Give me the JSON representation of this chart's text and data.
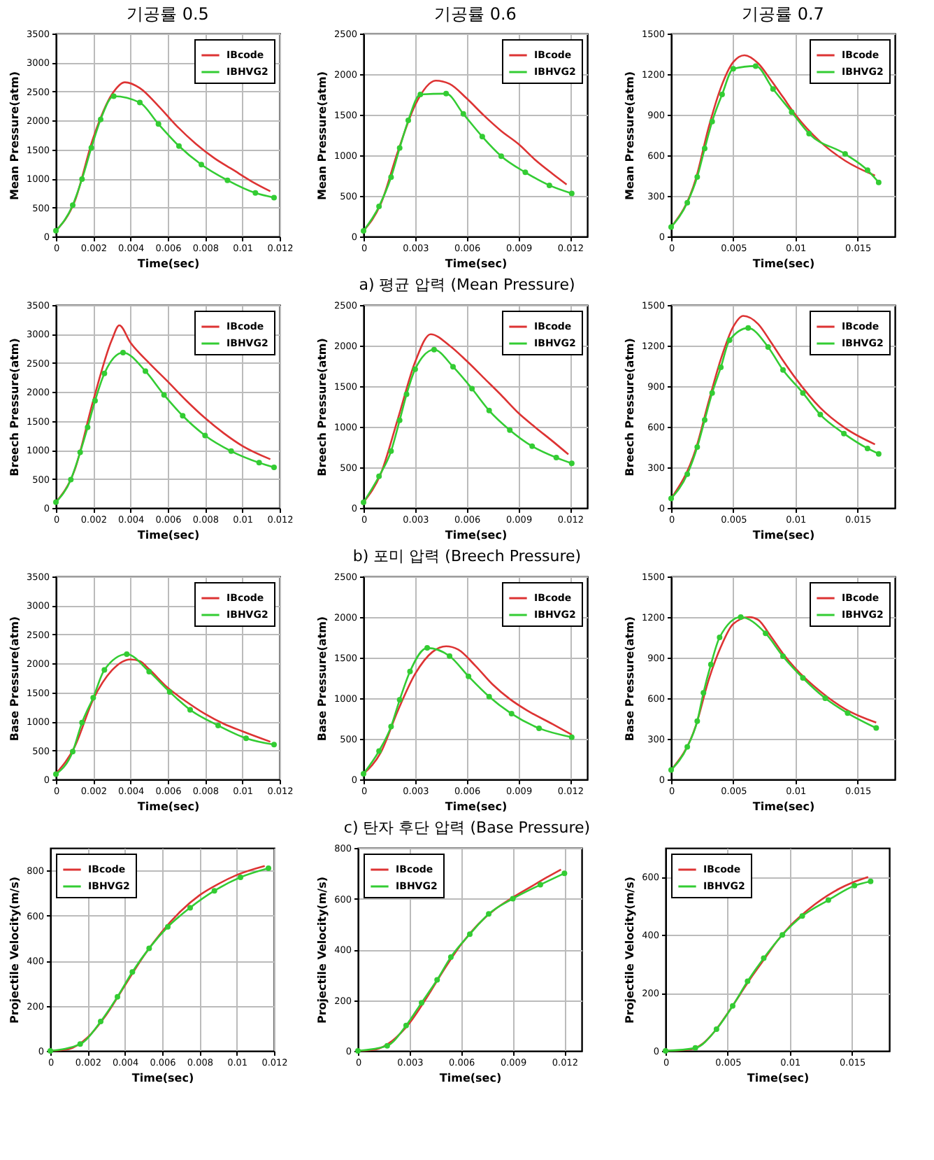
{
  "chart_data": [
    {
      "type": "line",
      "title": "기공률 0.5",
      "xlabel": "Time(sec)",
      "ylabel": "Mean Pressure(atm)",
      "xlim": [
        0,
        0.012
      ],
      "xticks": [
        0,
        0.002,
        0.004,
        0.006,
        0.008,
        0.01,
        0.012
      ],
      "ylim": [
        0,
        3500
      ],
      "yticks": [
        0,
        500,
        1000,
        1500,
        2000,
        2500,
        3000,
        3500
      ],
      "grid": true,
      "legend": "top right",
      "series": [
        {
          "name": "IBcode",
          "color": "#dd3333",
          "marker": "none",
          "x": [
            0,
            0.001,
            0.002,
            0.003,
            0.0037,
            0.0045,
            0.0055,
            0.0065,
            0.0075,
            0.0085,
            0.0095,
            0.0105,
            0.0115
          ],
          "values": [
            100,
            600,
            1700,
            2450,
            2660,
            2560,
            2250,
            1900,
            1600,
            1350,
            1150,
            950,
            780
          ]
        },
        {
          "name": "IBHVG2",
          "color": "#33cc33",
          "marker": "circle",
          "x": [
            0,
            0.0009,
            0.0014,
            0.0019,
            0.0024,
            0.0031,
            0.0045,
            0.0055,
            0.0066,
            0.0078,
            0.0092,
            0.0107,
            0.0117
          ],
          "values": [
            100,
            540,
            990,
            1530,
            2020,
            2420,
            2310,
            1940,
            1560,
            1240,
            970,
            750,
            670
          ]
        }
      ]
    },
    {
      "type": "line",
      "title": "기공률 0.6",
      "xlabel": "Time(sec)",
      "ylabel": "Mean Pressure(atm)",
      "xlim": [
        0,
        0.013
      ],
      "xticks": [
        0,
        0.003,
        0.006,
        0.009,
        0.012
      ],
      "ylim": [
        0,
        2500
      ],
      "yticks": [
        0,
        500,
        1000,
        1500,
        2000,
        2500
      ],
      "grid": true,
      "legend": "top right",
      "annotations": [
        "a) 평균 압력 (Mean Pressure)"
      ],
      "series": [
        {
          "name": "IBcode",
          "color": "#dd3333",
          "marker": "none",
          "x": [
            0,
            0.001,
            0.002,
            0.003,
            0.0042,
            0.005,
            0.006,
            0.007,
            0.008,
            0.009,
            0.01,
            0.011,
            0.0118
          ],
          "values": [
            70,
            400,
            1050,
            1620,
            1920,
            1880,
            1700,
            1490,
            1300,
            1140,
            940,
            770,
            640
          ]
        },
        {
          "name": "IBHVG2",
          "color": "#33cc33",
          "marker": "circle",
          "x": [
            0,
            0.0009,
            0.0016,
            0.0021,
            0.0026,
            0.0033,
            0.0048,
            0.0058,
            0.0069,
            0.008,
            0.0094,
            0.0108,
            0.0121
          ],
          "values": [
            70,
            370,
            730,
            1090,
            1430,
            1750,
            1760,
            1510,
            1230,
            990,
            790,
            630,
            530
          ]
        }
      ]
    },
    {
      "type": "line",
      "title": "기공률 0.7",
      "xlabel": "Time(sec)",
      "ylabel": "Mean Pressure(atm)",
      "xlim": [
        0,
        0.018
      ],
      "xticks": [
        0,
        0.005,
        0.01,
        0.015
      ],
      "ylim": [
        0,
        1500
      ],
      "yticks": [
        0,
        300,
        600,
        900,
        1200,
        1500
      ],
      "grid": true,
      "legend": "top right",
      "series": [
        {
          "name": "IBcode",
          "color": "#dd3333",
          "marker": "none",
          "x": [
            0,
            0.002,
            0.003,
            0.004,
            0.005,
            0.0059,
            0.007,
            0.008,
            0.009,
            0.01,
            0.012,
            0.014,
            0.0164
          ],
          "values": [
            70,
            430,
            800,
            1100,
            1290,
            1340,
            1280,
            1160,
            1030,
            900,
            700,
            560,
            450
          ]
        },
        {
          "name": "IBHVG2",
          "color": "#33cc33",
          "marker": "circle",
          "x": [
            0,
            0.0013,
            0.0021,
            0.0027,
            0.0033,
            0.0041,
            0.005,
            0.0068,
            0.0082,
            0.0097,
            0.0111,
            0.014,
            0.0158,
            0.0167
          ],
          "values": [
            70,
            250,
            440,
            650,
            850,
            1050,
            1240,
            1260,
            1090,
            920,
            760,
            610,
            490,
            400
          ]
        }
      ]
    },
    {
      "type": "line",
      "xlabel": "Time(sec)",
      "ylabel": "Breech Pressure(atm)",
      "xlim": [
        0,
        0.012
      ],
      "xticks": [
        0,
        0.002,
        0.004,
        0.006,
        0.008,
        0.01,
        0.012
      ],
      "ylim": [
        0,
        3500
      ],
      "yticks": [
        0,
        500,
        1000,
        1500,
        2000,
        2500,
        3000,
        3500
      ],
      "grid": true,
      "legend": "top right",
      "series": [
        {
          "name": "IBcode",
          "color": "#dd3333",
          "marker": "none",
          "x": [
            0,
            0.001,
            0.002,
            0.003,
            0.0034,
            0.004,
            0.005,
            0.006,
            0.007,
            0.008,
            0.009,
            0.01,
            0.0115
          ],
          "values": [
            100,
            650,
            1850,
            2900,
            3150,
            2850,
            2500,
            2180,
            1850,
            1550,
            1290,
            1070,
            840
          ]
        },
        {
          "name": "IBHVG2",
          "color": "#33cc33",
          "marker": "circle",
          "x": [
            0,
            0.0008,
            0.0013,
            0.0017,
            0.0021,
            0.0026,
            0.0036,
            0.0048,
            0.0058,
            0.0068,
            0.008,
            0.0094,
            0.0109,
            0.0117
          ],
          "values": [
            100,
            490,
            960,
            1390,
            1850,
            2320,
            2680,
            2360,
            1950,
            1590,
            1250,
            980,
            780,
            700
          ]
        }
      ]
    },
    {
      "type": "line",
      "xlabel": "Time(sec)",
      "ylabel": "Breech Pressure(atm)",
      "xlim": [
        0,
        0.013
      ],
      "xticks": [
        0,
        0.003,
        0.006,
        0.009,
        0.012
      ],
      "ylim": [
        0,
        2500
      ],
      "yticks": [
        0,
        500,
        1000,
        1500,
        2000,
        2500
      ],
      "grid": true,
      "legend": "top right",
      "annotations": [
        "b) 포미 압력 (Breech Pressure)"
      ],
      "series": [
        {
          "name": "IBcode",
          "color": "#dd3333",
          "marker": "none",
          "x": [
            0,
            0.001,
            0.002,
            0.003,
            0.0039,
            0.005,
            0.006,
            0.007,
            0.008,
            0.009,
            0.01,
            0.011,
            0.0119
          ],
          "values": [
            70,
            420,
            1100,
            1800,
            2140,
            2000,
            1810,
            1600,
            1390,
            1170,
            990,
            820,
            660
          ]
        },
        {
          "name": "IBHVG2",
          "color": "#33cc33",
          "marker": "circle",
          "x": [
            0,
            0.0009,
            0.0016,
            0.0021,
            0.0025,
            0.003,
            0.0041,
            0.0052,
            0.0063,
            0.0073,
            0.0085,
            0.0098,
            0.0112,
            0.0121
          ],
          "values": [
            70,
            390,
            700,
            1080,
            1400,
            1710,
            1950,
            1740,
            1470,
            1200,
            960,
            760,
            620,
            550
          ]
        }
      ]
    },
    {
      "type": "line",
      "xlabel": "Time(sec)",
      "ylabel": "Breech Pressure(atm)",
      "xlim": [
        0,
        0.018
      ],
      "xticks": [
        0,
        0.005,
        0.01,
        0.015
      ],
      "ylim": [
        0,
        1500
      ],
      "yticks": [
        0,
        300,
        600,
        900,
        1200,
        1500
      ],
      "grid": true,
      "legend": "top right",
      "series": [
        {
          "name": "IBcode",
          "color": "#dd3333",
          "marker": "none",
          "x": [
            0,
            0.002,
            0.003,
            0.004,
            0.005,
            0.0058,
            0.007,
            0.008,
            0.009,
            0.01,
            0.012,
            0.014,
            0.0164
          ],
          "values": [
            70,
            440,
            780,
            1100,
            1340,
            1420,
            1360,
            1230,
            1090,
            960,
            740,
            590,
            470
          ]
        },
        {
          "name": "IBHVG2",
          "color": "#33cc33",
          "marker": "circle",
          "x": [
            0,
            0.0013,
            0.0021,
            0.0027,
            0.0033,
            0.004,
            0.0047,
            0.0062,
            0.0078,
            0.009,
            0.0106,
            0.012,
            0.0139,
            0.0158,
            0.0167
          ],
          "values": [
            70,
            250,
            450,
            650,
            850,
            1040,
            1240,
            1330,
            1190,
            1020,
            850,
            690,
            550,
            440,
            400
          ]
        }
      ]
    },
    {
      "type": "line",
      "xlabel": "Time(sec)",
      "ylabel": "Base Pressure(atm)",
      "xlim": [
        0,
        0.012
      ],
      "xticks": [
        0,
        0.002,
        0.004,
        0.006,
        0.008,
        0.01,
        0.012
      ],
      "ylim": [
        0,
        3500
      ],
      "yticks": [
        0,
        500,
        1000,
        1500,
        2000,
        2500,
        3000,
        3500
      ],
      "grid": true,
      "legend": "top right",
      "series": [
        {
          "name": "IBcode",
          "color": "#dd3333",
          "marker": "none",
          "x": [
            0,
            0.001,
            0.002,
            0.003,
            0.004,
            0.0045,
            0.005,
            0.006,
            0.007,
            0.008,
            0.009,
            0.01,
            0.0115
          ],
          "values": [
            100,
            560,
            1380,
            1880,
            2070,
            2040,
            1900,
            1580,
            1340,
            1130,
            960,
            830,
            650
          ]
        },
        {
          "name": "IBHVG2",
          "color": "#33cc33",
          "marker": "circle",
          "x": [
            0,
            0.0009,
            0.0014,
            0.002,
            0.0026,
            0.0038,
            0.005,
            0.0061,
            0.0072,
            0.0087,
            0.0102,
            0.0117
          ],
          "values": [
            90,
            480,
            980,
            1410,
            1890,
            2160,
            1860,
            1510,
            1200,
            930,
            710,
            600
          ]
        }
      ]
    },
    {
      "type": "line",
      "xlabel": "Time(sec)",
      "ylabel": "Base Pressure(atm)",
      "xlim": [
        0,
        0.013
      ],
      "xticks": [
        0,
        0.003,
        0.006,
        0.009,
        0.012
      ],
      "ylim": [
        0,
        2500
      ],
      "yticks": [
        0,
        500,
        1000,
        1500,
        2000,
        2500
      ],
      "grid": true,
      "legend": "top right",
      "annotations": [
        "c) 탄자 후단 압력 (Base Pressure)"
      ],
      "series": [
        {
          "name": "IBcode",
          "color": "#dd3333",
          "marker": "none",
          "x": [
            0,
            0.001,
            0.002,
            0.003,
            0.004,
            0.0048,
            0.0055,
            0.0065,
            0.0075,
            0.0085,
            0.0095,
            0.011,
            0.0121
          ],
          "values": [
            70,
            330,
            850,
            1300,
            1570,
            1640,
            1600,
            1400,
            1170,
            990,
            850,
            680,
            550
          ]
        },
        {
          "name": "IBHVG2",
          "color": "#33cc33",
          "marker": "circle",
          "x": [
            0,
            0.0009,
            0.0016,
            0.0021,
            0.0027,
            0.0037,
            0.005,
            0.0061,
            0.0073,
            0.0086,
            0.0102,
            0.0121
          ],
          "values": [
            70,
            350,
            650,
            980,
            1330,
            1620,
            1520,
            1270,
            1020,
            810,
            630,
            520
          ]
        }
      ]
    },
    {
      "type": "line",
      "xlabel": "Time(sec)",
      "ylabel": "Base Pressure(atm)",
      "xlim": [
        0,
        0.018
      ],
      "xticks": [
        0,
        0.005,
        0.01,
        0.015
      ],
      "ylim": [
        0,
        1500
      ],
      "yticks": [
        0,
        300,
        600,
        900,
        1200,
        1500
      ],
      "grid": true,
      "legend": "top right",
      "series": [
        {
          "name": "IBcode",
          "color": "#dd3333",
          "marker": "none",
          "x": [
            0,
            0.002,
            0.003,
            0.004,
            0.005,
            0.0063,
            0.007,
            0.008,
            0.009,
            0.01,
            0.012,
            0.014,
            0.0165
          ],
          "values": [
            70,
            400,
            730,
            980,
            1150,
            1200,
            1180,
            1060,
            930,
            820,
            650,
            520,
            420
          ]
        },
        {
          "name": "IBHVG2",
          "color": "#33cc33",
          "marker": "circle",
          "x": [
            0,
            0.0013,
            0.0021,
            0.0026,
            0.0032,
            0.0039,
            0.0056,
            0.0076,
            0.009,
            0.0106,
            0.0124,
            0.0142,
            0.0165
          ],
          "values": [
            70,
            240,
            430,
            640,
            850,
            1050,
            1200,
            1080,
            910,
            750,
            600,
            490,
            380
          ]
        }
      ]
    },
    {
      "type": "line",
      "xlabel": "Time(sec)",
      "ylabel": "Projectile Velocity(m/s)",
      "xlim": [
        0,
        0.012
      ],
      "xticks": [
        0,
        0.002,
        0.004,
        0.006,
        0.008,
        0.01,
        0.012
      ],
      "ylim": [
        0,
        900
      ],
      "yticks": [
        0,
        200,
        400,
        600,
        800
      ],
      "grid": true,
      "legend": "top left",
      "series": [
        {
          "name": "IBcode",
          "color": "#dd3333",
          "marker": "none",
          "x": [
            0,
            0.001,
            0.002,
            0.003,
            0.004,
            0.005,
            0.006,
            0.007,
            0.008,
            0.009,
            0.01,
            0.0115
          ],
          "values": [
            0,
            8,
            60,
            160,
            290,
            420,
            530,
            620,
            690,
            740,
            780,
            820
          ]
        },
        {
          "name": "IBHVG2",
          "color": "#33cc33",
          "marker": "circle",
          "x": [
            0,
            0.0016,
            0.0027,
            0.0036,
            0.0044,
            0.0053,
            0.0063,
            0.0075,
            0.0088,
            0.0102,
            0.0117
          ],
          "values": [
            0,
            30,
            130,
            240,
            350,
            455,
            550,
            635,
            710,
            770,
            810
          ]
        }
      ]
    },
    {
      "type": "line",
      "xlabel": "Time(sec)",
      "ylabel": "Projectile Velocity(m/s)",
      "xlim": [
        0,
        0.013
      ],
      "xticks": [
        0,
        0.003,
        0.006,
        0.009,
        0.012
      ],
      "ylim": [
        0,
        800
      ],
      "yticks": [
        0,
        200,
        400,
        600,
        800
      ],
      "grid": true,
      "legend": "top left",
      "series": [
        {
          "name": "IBcode",
          "color": "#dd3333",
          "marker": "none",
          "x": [
            0,
            0.001,
            0.002,
            0.003,
            0.004,
            0.005,
            0.006,
            0.007,
            0.008,
            0.009,
            0.01,
            0.011,
            0.0118
          ],
          "values": [
            0,
            5,
            40,
            110,
            210,
            320,
            420,
            500,
            560,
            605,
            645,
            685,
            715
          ]
        },
        {
          "name": "IBHVG2",
          "color": "#33cc33",
          "marker": "circle",
          "x": [
            0,
            0.0017,
            0.0028,
            0.0037,
            0.0046,
            0.0054,
            0.0065,
            0.0076,
            0.009,
            0.0106,
            0.012
          ],
          "values": [
            0,
            20,
            100,
            190,
            280,
            370,
            460,
            540,
            600,
            655,
            700
          ]
        }
      ]
    },
    {
      "type": "line",
      "xlabel": "Time(sec)",
      "ylabel": "Projectile Velocity(m/s)",
      "xlim": [
        0,
        0.018
      ],
      "xticks": [
        0,
        0.005,
        0.01,
        0.015
      ],
      "ylim": [
        0,
        700
      ],
      "yticks": [
        0,
        200,
        400,
        600
      ],
      "grid": true,
      "legend": "top left",
      "series": [
        {
          "name": "IBcode",
          "color": "#dd3333",
          "marker": "none",
          "x": [
            0,
            0.002,
            0.003,
            0.004,
            0.005,
            0.006,
            0.007,
            0.008,
            0.009,
            0.01,
            0.011,
            0.012,
            0.013,
            0.014,
            0.015,
            0.0163
          ],
          "values": [
            0,
            5,
            25,
            70,
            130,
            195,
            260,
            320,
            380,
            430,
            470,
            505,
            535,
            560,
            580,
            600
          ]
        },
        {
          "name": "IBHVG2",
          "color": "#33cc33",
          "marker": "circle",
          "x": [
            0,
            0.0024,
            0.0041,
            0.0054,
            0.0066,
            0.0079,
            0.0094,
            0.011,
            0.0131,
            0.0152,
            0.0165
          ],
          "values": [
            0,
            10,
            75,
            155,
            240,
            320,
            400,
            465,
            520,
            570,
            585
          ]
        }
      ]
    }
  ]
}
